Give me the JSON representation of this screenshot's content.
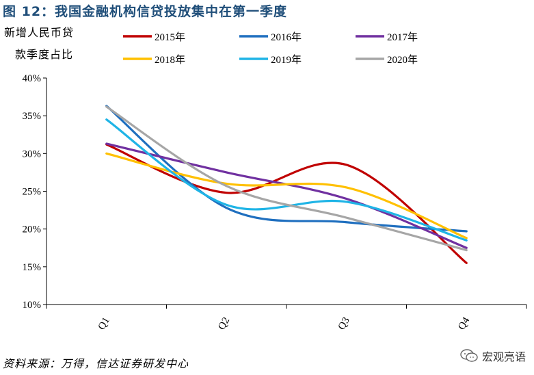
{
  "figure": {
    "title": "图 12：我国金融机构信贷投放集中在第一季度",
    "ylabel_line1": "新增人民币贷",
    "ylabel_line2": "款季度占比",
    "source": "资料来源：万得，信达证券研发中心",
    "watermark": "宏观亮语"
  },
  "chart_data": {
    "type": "line",
    "title": "",
    "xlabel": "",
    "ylabel": "新增人民币贷款季度占比",
    "categories": [
      "Q1",
      "Q2",
      "Q3",
      "Q4"
    ],
    "ylim": [
      0.1,
      0.4
    ],
    "yticks": [
      "10%",
      "15%",
      "20%",
      "25%",
      "30%",
      "35%",
      "40%"
    ],
    "yticks_values": [
      0.1,
      0.15,
      0.2,
      0.25,
      0.3,
      0.35,
      0.4
    ],
    "grid": false,
    "legend_position": "top",
    "smooth": true,
    "series": [
      {
        "name": "2015年",
        "color": "#c00000",
        "values": [
          0.312,
          0.248,
          0.285,
          0.155
        ]
      },
      {
        "name": "2016年",
        "color": "#1f6fbf",
        "values": [
          0.363,
          0.228,
          0.209,
          0.197
        ]
      },
      {
        "name": "2017年",
        "color": "#7030a0",
        "values": [
          0.313,
          0.275,
          0.24,
          0.175
        ]
      },
      {
        "name": "2018年",
        "color": "#ffc000",
        "values": [
          0.3,
          0.26,
          0.255,
          0.188
        ]
      },
      {
        "name": "2019年",
        "color": "#1fb4e6",
        "values": [
          0.345,
          0.232,
          0.236,
          0.185
        ]
      },
      {
        "name": "2020年",
        "color": "#a6a6a6",
        "values": [
          0.362,
          0.257,
          0.215,
          0.172
        ]
      }
    ]
  }
}
